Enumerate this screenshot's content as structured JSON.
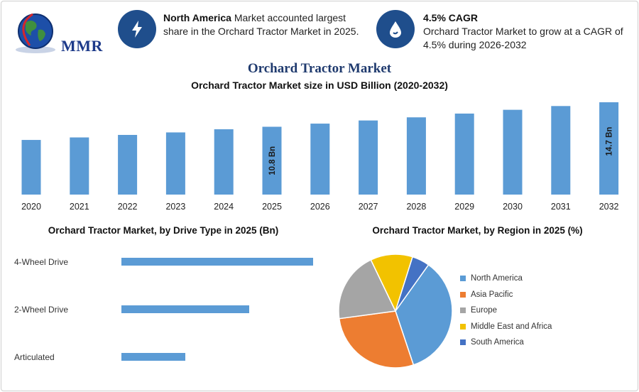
{
  "logo": {
    "text": "MMR"
  },
  "highlights": [
    {
      "icon": "lightning-icon",
      "bold": "North America",
      "text": " Market accounted largest share in the Orchard Tractor Market in 2025."
    },
    {
      "icon": "growth-drop-icon",
      "bold": "4.5% CAGR",
      "text": "Orchard Tractor Market to grow at a CAGR of 4.5% during 2026-2032"
    }
  ],
  "title": "Orchard Tractor Market",
  "colors": {
    "bar": "#5b9bd5",
    "accent": "#1f4e8c",
    "title": "#1f3a6e"
  },
  "chart_data": [
    {
      "type": "bar",
      "title": "Orchard Tractor Market size in USD Billion (2020-2032)",
      "categories": [
        "2020",
        "2021",
        "2022",
        "2023",
        "2024",
        "2025",
        "2026",
        "2027",
        "2028",
        "2029",
        "2030",
        "2031",
        "2032"
      ],
      "values": [
        8.7,
        9.1,
        9.5,
        9.9,
        10.4,
        10.8,
        11.3,
        11.8,
        12.3,
        12.9,
        13.5,
        14.1,
        14.7
      ],
      "data_labels": {
        "2025": "10.8 Bn",
        "2032": "14.7 Bn"
      },
      "xlabel": "",
      "ylabel": "",
      "ylim": [
        0,
        15
      ],
      "grid": false
    },
    {
      "type": "bar",
      "orientation": "horizontal",
      "title": "Orchard Tractor Market, by Drive Type in 2025 (Bn)",
      "categories": [
        "4-Wheel Drive",
        "2-Wheel Drive",
        "Articulated"
      ],
      "values": [
        5.4,
        3.6,
        1.8
      ],
      "xlim": [
        0,
        6
      ]
    },
    {
      "type": "pie",
      "title": "Orchard Tractor Market, by Region in 2025 (%)",
      "categories": [
        "North America",
        "Asia Pacific",
        "Europe",
        "Middle East and Africa",
        "South America"
      ],
      "values": [
        35,
        28,
        20,
        12,
        5
      ],
      "colors": [
        "#5b9bd5",
        "#ed7d31",
        "#a5a5a5",
        "#f2c200",
        "#4472c4"
      ],
      "legend": "right"
    }
  ]
}
